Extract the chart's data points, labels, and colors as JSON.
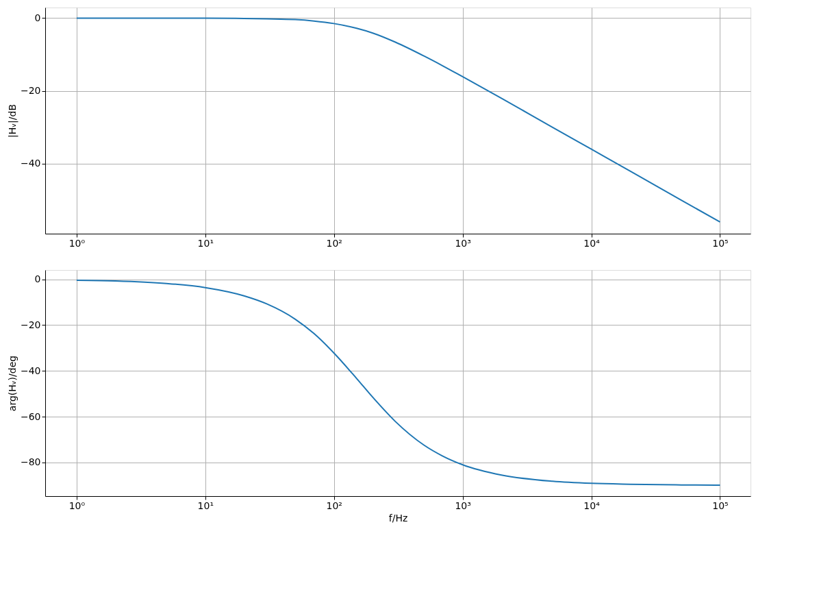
{
  "chart_data": [
    {
      "type": "line",
      "ylabel": "|Hᵥ|/dB",
      "log": "x",
      "grid": true,
      "marker": "none",
      "line_style": "solid",
      "x": [
        1,
        2,
        5,
        10,
        20,
        30,
        50,
        70,
        100,
        150,
        200,
        300,
        500,
        700,
        1000,
        2000,
        5000,
        10000,
        20000,
        50000,
        100000
      ],
      "series": [
        {
          "color": "#1f77b4",
          "values": [
            0,
            0,
            0,
            0,
            -0.1,
            -0.2,
            -0.4,
            -0.8,
            -1.5,
            -2.8,
            -4.1,
            -6.6,
            -10.4,
            -13.1,
            -16.1,
            -22.0,
            -30.0,
            -36.0,
            -42.0,
            -50.0,
            -56.0
          ]
        }
      ],
      "xlim": [
        0.57,
        172600
      ],
      "xticks": [
        {
          "value": 1,
          "label": "10⁰"
        },
        {
          "value": 10,
          "label": "10¹"
        },
        {
          "value": 100,
          "label": "10²"
        },
        {
          "value": 1000,
          "label": "10³"
        },
        {
          "value": 10000,
          "label": "10⁴"
        },
        {
          "value": 100000,
          "label": "10⁵"
        }
      ],
      "ylim": [
        -59.2,
        2.9
      ],
      "yticks": [
        -40,
        -20,
        0
      ]
    },
    {
      "type": "line",
      "xlabel": "f/Hz",
      "ylabel": "arg(Hᵥ)/deg",
      "log": "x",
      "grid": true,
      "marker": "none",
      "line_style": "solid",
      "x": [
        1,
        2,
        5,
        10,
        20,
        30,
        50,
        70,
        100,
        150,
        200,
        300,
        500,
        700,
        1000,
        2000,
        5000,
        10000,
        20000,
        50000,
        100000
      ],
      "series": [
        {
          "color": "#1f77b4",
          "values": [
            -0.4,
            -0.7,
            -1.8,
            -3.6,
            -7.2,
            -10.7,
            -17.4,
            -23.7,
            -32.2,
            -43.3,
            -51.5,
            -62.1,
            -72.4,
            -77.2,
            -81.0,
            -85.5,
            -88.2,
            -89.1,
            -89.5,
            -89.8,
            -89.9
          ]
        }
      ],
      "xlim": [
        0.57,
        172600
      ],
      "xticks": [
        {
          "value": 1,
          "label": "10⁰"
        },
        {
          "value": 10,
          "label": "10¹"
        },
        {
          "value": 100,
          "label": "10²"
        },
        {
          "value": 1000,
          "label": "10³"
        },
        {
          "value": 10000,
          "label": "10⁴"
        },
        {
          "value": 100000,
          "label": "10⁵"
        }
      ],
      "ylim": [
        -94.7,
        4.1
      ],
      "yticks": [
        -80,
        -60,
        -40,
        -20,
        0
      ]
    }
  ]
}
